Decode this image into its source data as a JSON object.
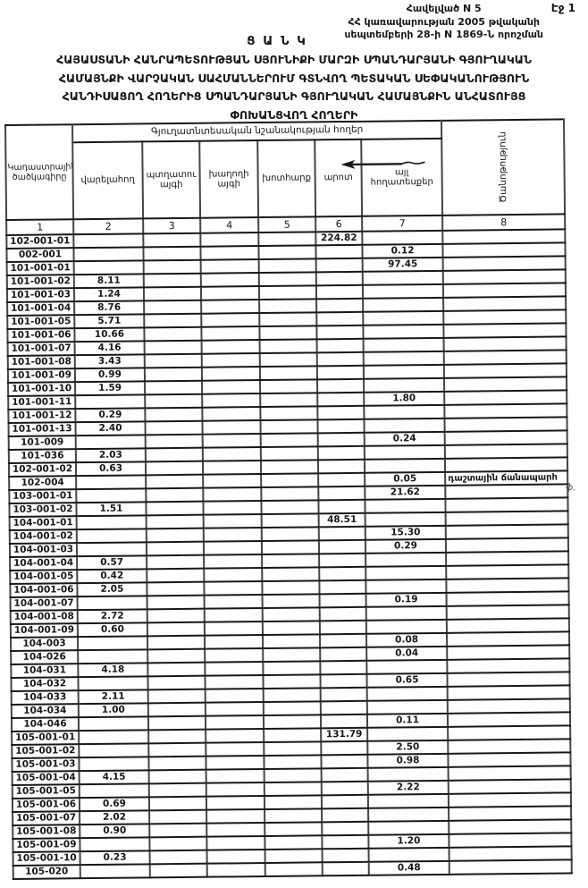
{
  "header": {
    "page_marker": "Էջ 1",
    "annex_lines": [
      "Հավելված N 5",
      "ՀՀ կառավարության 2005 թվականի",
      "սեպտեմբերի 28-ի N 1869-Ն որոշման"
    ],
    "title": "Ց Ա Ն Կ",
    "subtitle_lines": [
      "ՀԱՅԱՍՏԱՆԻ ՀԱՆՐԱՊԵՏՈՒԹՅԱՆ ՍՅՈՒՆԻՔԻ ՄԱՐԶԻ ՍՊԱՆԴԱՐՅԱՆԻ ԳՅՈՒՂԱԿԱՆ",
      "ՀԱՄԱՅՆՔԻ ՎԱՐՉԱԿԱՆ ՍԱՀՄԱՆՆԵՐՈՒՄ ԳՏՆՎՈՂ ՊԵՏԱԿԱՆ ՍԵՓԱԿԱՆՈՒԹՅՈՒՆ",
      "ՀԱՆԴԻՍԱՑՈՂ ՀՈՂԵՐԻՑ ՍՊԱՆԴԱՐՅԱՆԻ ԳՅՈՒՂԱԿԱՆ ՀԱՄԱՅՆՔԻՆ ԱՆՀԱՏՈՒՅՑ",
      "ՓՈԽԱՆՑՎՈՂ  ՀՈՂԵՐԻ"
    ]
  },
  "table": {
    "col1_header": "Կադաստրային ծածկագիրը",
    "group_header": "Գյուղատնտեսական նշանակության հողեր",
    "col8_header": "Ծանոթություն",
    "sub_headers": [
      "վարելահող",
      "պտղատու այգի",
      "խաղողի այգի",
      "խոտհարք",
      "արոտ",
      "այլ հողատեսքեր"
    ],
    "column_numbers": [
      "1",
      "2",
      "3",
      "4",
      "5",
      "6",
      "7",
      "8"
    ],
    "rows": [
      [
        "102-001-01",
        "",
        "",
        "",
        "",
        "224.82",
        "",
        ""
      ],
      [
        "002-001",
        "",
        "",
        "",
        "",
        "",
        "0.12",
        ""
      ],
      [
        "101-001-01",
        "",
        "",
        "",
        "",
        "",
        "97.45",
        ""
      ],
      [
        "101-001-02",
        "8.11",
        "",
        "",
        "",
        "",
        "",
        ""
      ],
      [
        "101-001-03",
        "1.24",
        "",
        "",
        "",
        "",
        "",
        ""
      ],
      [
        "101-001-04",
        "8.76",
        "",
        "",
        "",
        "",
        "",
        ""
      ],
      [
        "101-001-05",
        "5.71",
        "",
        "",
        "",
        "",
        "",
        ""
      ],
      [
        "101-001-06",
        "10.66",
        "",
        "",
        "",
        "",
        "",
        ""
      ],
      [
        "101-001-07",
        "4.16",
        "",
        "",
        "",
        "",
        "",
        ""
      ],
      [
        "101-001-08",
        "3.43",
        "",
        "",
        "",
        "",
        "",
        ""
      ],
      [
        "101-001-09",
        "0.99",
        "",
        "",
        "",
        "",
        "",
        ""
      ],
      [
        "101-001-10",
        "1.59",
        "",
        "",
        "",
        "",
        "",
        ""
      ],
      [
        "101-001-11",
        "",
        "",
        "",
        "",
        "",
        "1.80",
        ""
      ],
      [
        "101-001-12",
        "0.29",
        "",
        "",
        "",
        "",
        "",
        ""
      ],
      [
        "101-001-13",
        "2.40",
        "",
        "",
        "",
        "",
        "",
        ""
      ],
      [
        "101-009",
        "",
        "",
        "",
        "",
        "",
        "0.24",
        ""
      ],
      [
        "101-036",
        "2.03",
        "",
        "",
        "",
        "",
        "",
        ""
      ],
      [
        "102-001-02",
        "0.63",
        "",
        "",
        "",
        "",
        "",
        ""
      ],
      [
        "102-004",
        "",
        "",
        "",
        "",
        "",
        "0.05",
        "դաշտային ճանապարհ"
      ],
      [
        "103-001-01",
        "",
        "",
        "",
        "",
        "",
        "21.62",
        ""
      ],
      [
        "103-001-02",
        "1.51",
        "",
        "",
        "",
        "",
        "",
        ""
      ],
      [
        "104-001-01",
        "",
        "",
        "",
        "",
        "48.51",
        "",
        ""
      ],
      [
        "104-001-02",
        "",
        "",
        "",
        "",
        "",
        "15.30",
        ""
      ],
      [
        "104-001-03",
        "",
        "",
        "",
        "",
        "",
        "0.29",
        ""
      ],
      [
        "104-001-04",
        "0.57",
        "",
        "",
        "",
        "",
        "",
        ""
      ],
      [
        "104-001-05",
        "0.42",
        "",
        "",
        "",
        "",
        "",
        ""
      ],
      [
        "104-001-06",
        "2.05",
        "",
        "",
        "",
        "",
        "",
        ""
      ],
      [
        "104-001-07",
        "",
        "",
        "",
        "",
        "",
        "0.19",
        ""
      ],
      [
        "104-001-08",
        "2.72",
        "",
        "",
        "",
        "",
        "",
        ""
      ],
      [
        "104-001-09",
        "0.60",
        "",
        "",
        "",
        "",
        "",
        ""
      ],
      [
        "104-003",
        "",
        "",
        "",
        "",
        "",
        "0.08",
        ""
      ],
      [
        "104-026",
        "",
        "",
        "",
        "",
        "",
        "0.04",
        ""
      ],
      [
        "104-031",
        "4.18",
        "",
        "",
        "",
        "",
        "",
        ""
      ],
      [
        "104-032",
        "",
        "",
        "",
        "",
        "",
        "0.65",
        ""
      ],
      [
        "104-033",
        "2.11",
        "",
        "",
        "",
        "",
        "",
        ""
      ],
      [
        "104-034",
        "1.00",
        "",
        "",
        "",
        "",
        "",
        ""
      ],
      [
        "104-046",
        "",
        "",
        "",
        "",
        "",
        "0.11",
        ""
      ],
      [
        "105-001-01",
        "",
        "",
        "",
        "",
        "131.79",
        "",
        ""
      ],
      [
        "105-001-02",
        "",
        "",
        "",
        "",
        "",
        "2.50",
        ""
      ],
      [
        "105-001-03",
        "",
        "",
        "",
        "",
        "",
        "0.98",
        ""
      ],
      [
        "105-001-04",
        "4.15",
        "",
        "",
        "",
        "",
        "",
        ""
      ],
      [
        "105-001-05",
        "",
        "",
        "",
        "",
        "",
        "2.22",
        ""
      ],
      [
        "105-001-06",
        "0.69",
        "",
        "",
        "",
        "",
        "",
        ""
      ],
      [
        "105-001-07",
        "2.02",
        "",
        "",
        "",
        "",
        "",
        ""
      ],
      [
        "105-001-08",
        "0.90",
        "",
        "",
        "",
        "",
        "",
        ""
      ],
      [
        "105-001-09",
        "",
        "",
        "",
        "",
        "",
        "1.20",
        ""
      ],
      [
        "105-001-10",
        "0.23",
        "",
        "",
        "",
        "",
        "",
        ""
      ],
      [
        "105-020",
        "",
        "",
        "",
        "",
        "",
        "0.48",
        ""
      ]
    ]
  },
  "annotations": {
    "stray_mark": "ֆ."
  },
  "colors": {
    "paper": "#ffffff",
    "ink": "#161616",
    "grid_horizontal": "#181818",
    "grid_vertical": "#454545"
  }
}
